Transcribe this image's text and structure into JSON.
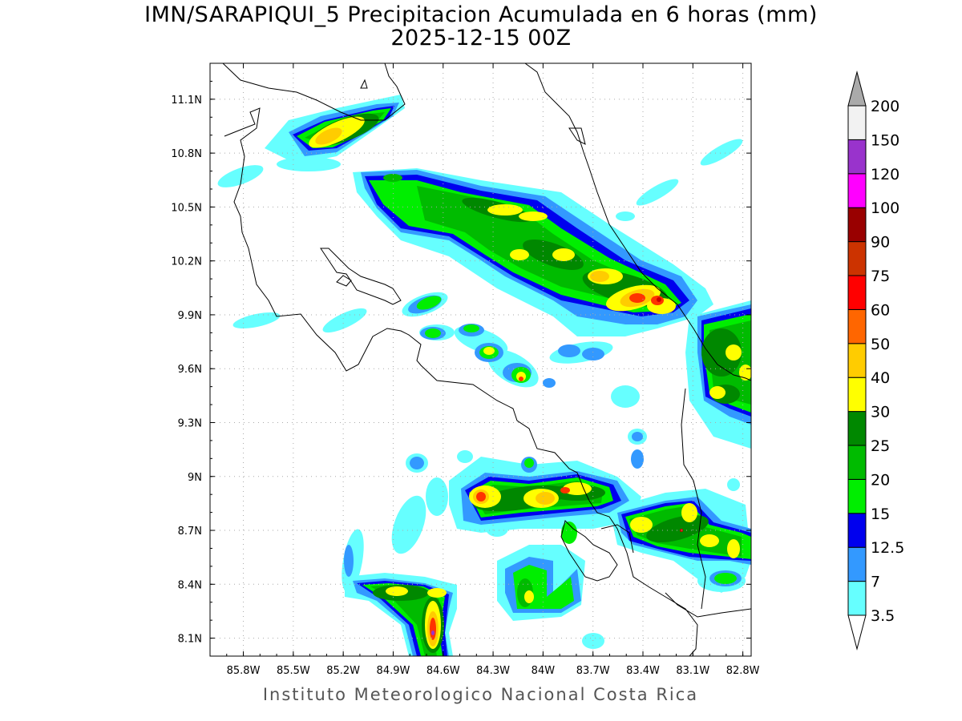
{
  "title": "IMN/SARAPIQUI_5 Precipitacion Acumulada en 6 horas (mm)",
  "subtitle": "2025-12-15 00Z",
  "credit": "Instituto Meteorologico Nacional Costa Rica",
  "map": {
    "lon_ticks": [
      "85.8W",
      "85.5W",
      "85.2W",
      "84.9W",
      "84.6W",
      "84.3W",
      "84W",
      "83.7W",
      "83.4W",
      "83.1W",
      "82.8W"
    ],
    "lat_ticks": [
      "11.1N",
      "10.8N",
      "10.5N",
      "10.2N",
      "9.9N",
      "9.6N",
      "9.3N",
      "9N",
      "8.7N",
      "8.4N",
      "8.1N"
    ],
    "lon_range": [
      -86.0,
      -82.75
    ],
    "lat_range": [
      8.0,
      11.3
    ],
    "gridlines": true
  },
  "colorbar": {
    "labels": [
      "3.5",
      "7",
      "12.5",
      "15",
      "20",
      "25",
      "30",
      "40",
      "50",
      "60",
      "75",
      "90",
      "100",
      "120",
      "150",
      "200"
    ],
    "colors": [
      "#ffffff",
      "#66ffff",
      "#3399ff",
      "#0000ee",
      "#00ee00",
      "#00bb00",
      "#008800",
      "#ffff00",
      "#ffcc00",
      "#ff6600",
      "#ff0000",
      "#cc3300",
      "#990000",
      "#ff00ff",
      "#9933cc",
      "#f2f2f2"
    ],
    "over_color": "#aaaaaa",
    "under_color": "#ffffff"
  }
}
